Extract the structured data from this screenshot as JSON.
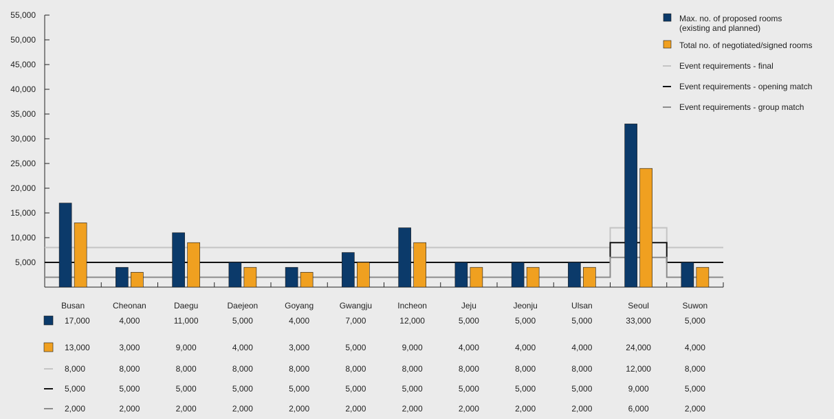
{
  "chart_data": {
    "type": "bar",
    "categories": [
      "Busan",
      "Cheonan",
      "Daegu",
      "Daejeon",
      "Goyang",
      "Gwangju",
      "Incheon",
      "Jeju",
      "Jeonju",
      "Ulsan",
      "Seoul",
      "Suwon"
    ],
    "ylim": [
      0,
      55000
    ],
    "yticks": [
      "5,000",
      "10,000",
      "15,000",
      "20,000",
      "25,000",
      "30,000",
      "35,000",
      "40,000",
      "45,000",
      "50,000",
      "55,000"
    ],
    "grid": false,
    "legend_position": "top-right",
    "bar_series": [
      {
        "name": "Max. no. of proposed rooms (existing and planned)",
        "name_lines": [
          "Max. no. of proposed rooms",
          "(existing and planned)"
        ],
        "color": "#0b3a6a",
        "values": [
          17000,
          4000,
          11000,
          5000,
          4000,
          7000,
          12000,
          5000,
          5000,
          5000,
          33000,
          5000
        ],
        "labels": [
          "17,000",
          "4,000",
          "11,000",
          "5,000",
          "4,000",
          "7,000",
          "12,000",
          "5,000",
          "5,000",
          "5,000",
          "33,000",
          "5,000"
        ]
      },
      {
        "name": "Total no. of negotiated/signed rooms",
        "name_lines": [
          "Total no. of negotiated/signed rooms"
        ],
        "color": "#f0a020",
        "values": [
          13000,
          3000,
          9000,
          4000,
          3000,
          5000,
          9000,
          4000,
          4000,
          4000,
          24000,
          4000
        ],
        "labels": [
          "13,000",
          "3,000",
          "9,000",
          "4,000",
          "3,000",
          "5,000",
          "9,000",
          "4,000",
          "4,000",
          "4,000",
          "24,000",
          "4,000"
        ]
      }
    ],
    "line_series": [
      {
        "name": "Event requirements - final",
        "color": "#c4c4c4",
        "values": [
          8000,
          8000,
          8000,
          8000,
          8000,
          8000,
          8000,
          8000,
          8000,
          8000,
          12000,
          8000
        ],
        "labels": [
          "8,000",
          "8,000",
          "8,000",
          "8,000",
          "8,000",
          "8,000",
          "8,000",
          "8,000",
          "8,000",
          "8,000",
          "12,000",
          "8,000"
        ]
      },
      {
        "name": "Event requirements - opening match",
        "color": "#111111",
        "values": [
          5000,
          5000,
          5000,
          5000,
          5000,
          5000,
          5000,
          5000,
          5000,
          5000,
          9000,
          5000
        ],
        "labels": [
          "5,000",
          "5,000",
          "5,000",
          "5,000",
          "5,000",
          "5,000",
          "5,000",
          "5,000",
          "5,000",
          "5,000",
          "9,000",
          "5,000"
        ]
      },
      {
        "name": "Event requirements - group match",
        "color": "#8c8c8c",
        "values": [
          2000,
          2000,
          2000,
          2000,
          2000,
          2000,
          2000,
          2000,
          2000,
          2000,
          6000,
          2000
        ],
        "labels": [
          "2,000",
          "2,000",
          "2,000",
          "2,000",
          "2,000",
          "2,000",
          "2,000",
          "2,000",
          "2,000",
          "2,000",
          "6,000",
          "2,000"
        ]
      }
    ]
  }
}
